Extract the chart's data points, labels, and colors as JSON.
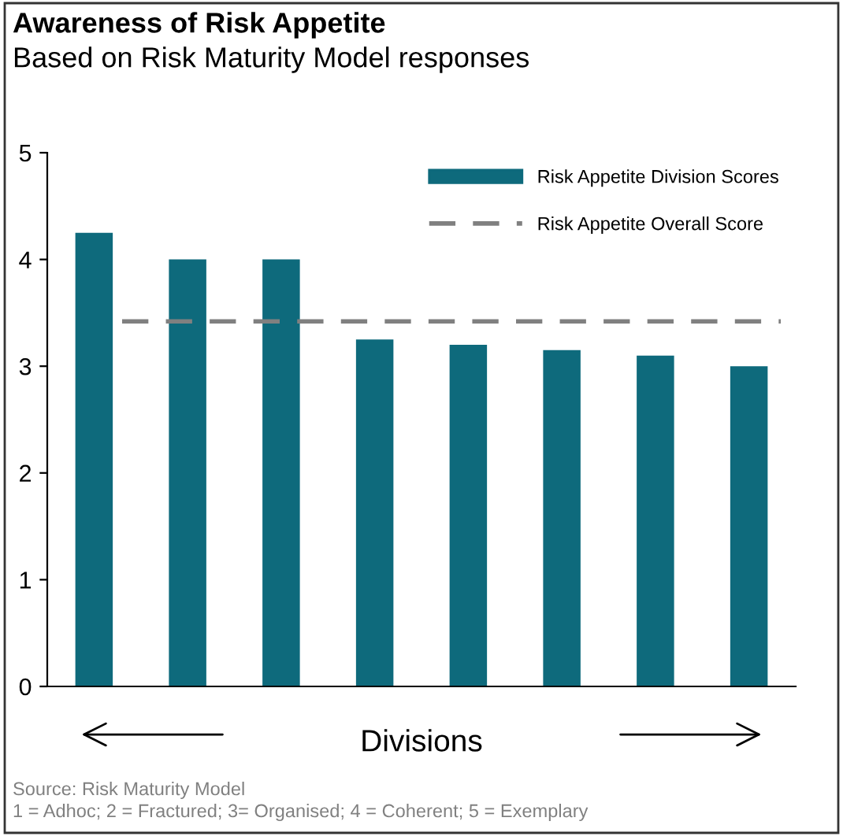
{
  "chart_data": {
    "type": "bar",
    "title": "Awareness of Risk Appetite",
    "subtitle": "Based on Risk Maturity Model responses",
    "xlabel": "Divisions",
    "categories": [
      null,
      null,
      null,
      null,
      null,
      null,
      null,
      null
    ],
    "series": [
      {
        "name": "Risk Appetite Division Scores",
        "color": "#0e6a7c",
        "values": [
          4.25,
          4.0,
          4.0,
          3.25,
          3.2,
          3.15,
          3.1,
          3.0
        ]
      }
    ],
    "ref_lines": [
      {
        "axis": "y",
        "value": 3.42,
        "label": "Risk Appetite Overall Score",
        "color": "#808080",
        "line_style": "dashed"
      }
    ],
    "ylim": [
      0,
      5
    ],
    "yticks": [
      0,
      1,
      2,
      3,
      4,
      5
    ],
    "grid": false,
    "legend": "top right",
    "annotations": [
      "Source: Risk Maturity Model",
      "1 = Adhoc; 2 = Fractured; 3= Organised; 4 = Coherent; 5 = Exemplary"
    ]
  }
}
